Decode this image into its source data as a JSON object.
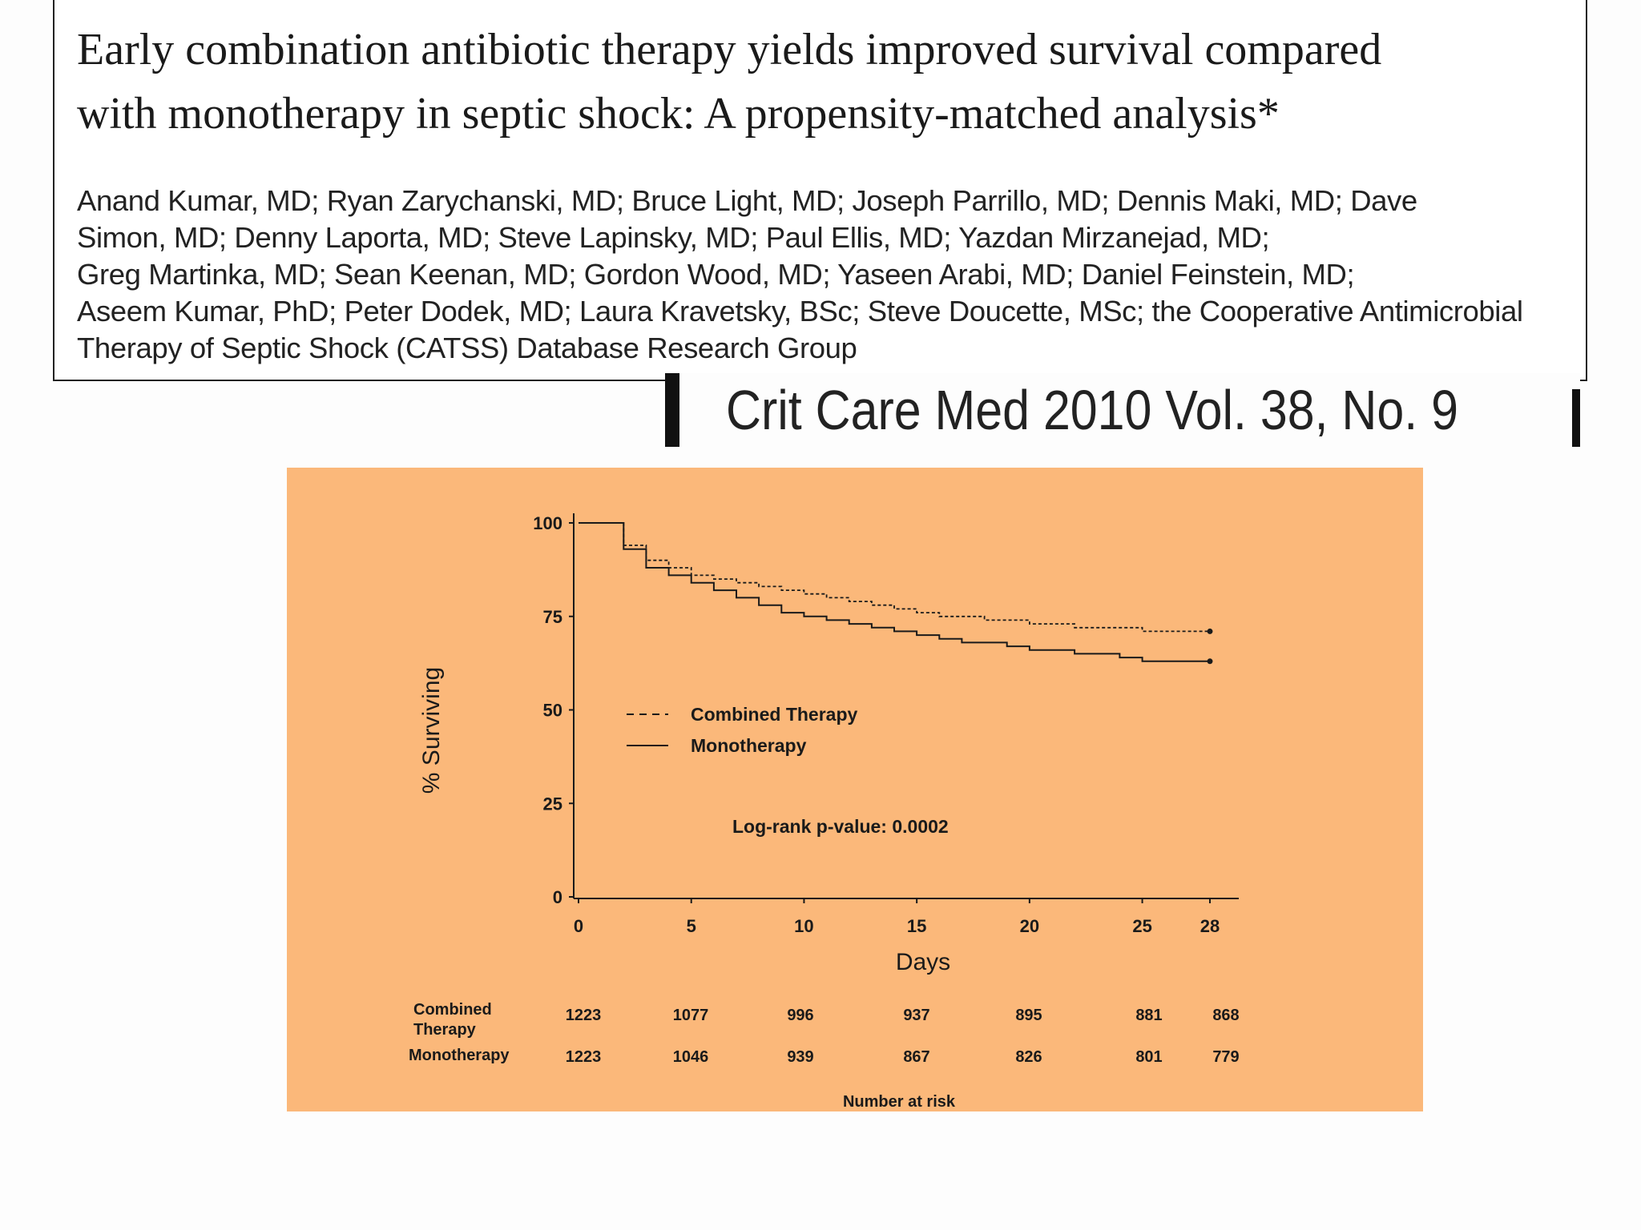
{
  "paper": {
    "title_line1": "Early combination antibiotic therapy yields improved survival compared",
    "title_line2": "with monotherapy in septic shock: A propensity-matched analysis*",
    "authors_lines": [
      "Anand Kumar, MD; Ryan Zarychanski, MD; Bruce Light, MD; Joseph Parrillo, MD; Dennis Maki, MD; Dave",
      "Simon, MD; Denny Laporta, MD; Steve Lapinsky, MD; Paul Ellis, MD; Yazdan Mirzanejad, MD;",
      "Greg Martinka, MD; Sean Keenan, MD; Gordon Wood, MD; Yaseen Arabi, MD; Daniel Feinstein, MD;",
      "Aseem Kumar, PhD; Peter Dodek, MD; Laura Kravetsky, BSc; Steve Doucette, MSc; the Cooperative Antimicrobial",
      "Therapy of Septic Shock (CATSS) Database Research Group"
    ],
    "citation": "Crit Care Med 2010 Vol. 38, No. 9"
  },
  "colors": {
    "panel_background": "#fbb87a",
    "ink": "#1a1a1a"
  },
  "chart_data": {
    "type": "line",
    "title": "",
    "xlabel": "Days",
    "ylabel": "% Surviving",
    "x_ticks": [
      0,
      5,
      10,
      15,
      20,
      25,
      28
    ],
    "y_ticks": [
      0,
      25,
      50,
      75,
      100
    ],
    "xlim": [
      0,
      28
    ],
    "ylim": [
      0,
      100
    ],
    "grid": false,
    "legend_position": "center-left",
    "series": [
      {
        "name": "Combined Therapy",
        "style": "dashed",
        "points": [
          [
            0,
            100
          ],
          [
            2,
            100
          ],
          [
            2,
            94
          ],
          [
            3,
            94
          ],
          [
            3,
            90
          ],
          [
            4,
            90
          ],
          [
            4,
            88
          ],
          [
            5,
            88
          ],
          [
            5,
            86
          ],
          [
            6,
            86
          ],
          [
            6,
            85
          ],
          [
            7,
            85
          ],
          [
            7,
            84
          ],
          [
            8,
            84
          ],
          [
            8,
            83
          ],
          [
            9,
            83
          ],
          [
            9,
            82
          ],
          [
            10,
            82
          ],
          [
            10,
            81
          ],
          [
            11,
            81
          ],
          [
            11,
            80
          ],
          [
            12,
            80
          ],
          [
            12,
            79
          ],
          [
            13,
            79
          ],
          [
            13,
            78
          ],
          [
            14,
            78
          ],
          [
            14,
            77
          ],
          [
            15,
            77
          ],
          [
            15,
            76
          ],
          [
            16,
            76
          ],
          [
            16,
            75
          ],
          [
            18,
            75
          ],
          [
            18,
            74
          ],
          [
            20,
            74
          ],
          [
            20,
            73
          ],
          [
            22,
            73
          ],
          [
            22,
            72
          ],
          [
            25,
            72
          ],
          [
            25,
            71
          ],
          [
            28,
            71
          ]
        ]
      },
      {
        "name": "Monotherapy",
        "style": "solid",
        "points": [
          [
            0,
            100
          ],
          [
            2,
            100
          ],
          [
            2,
            93
          ],
          [
            3,
            93
          ],
          [
            3,
            88
          ],
          [
            4,
            88
          ],
          [
            4,
            86
          ],
          [
            5,
            86
          ],
          [
            5,
            84
          ],
          [
            6,
            84
          ],
          [
            6,
            82
          ],
          [
            7,
            82
          ],
          [
            7,
            80
          ],
          [
            8,
            80
          ],
          [
            8,
            78
          ],
          [
            9,
            78
          ],
          [
            9,
            76
          ],
          [
            10,
            76
          ],
          [
            10,
            75
          ],
          [
            11,
            75
          ],
          [
            11,
            74
          ],
          [
            12,
            74
          ],
          [
            12,
            73
          ],
          [
            13,
            73
          ],
          [
            13,
            72
          ],
          [
            14,
            72
          ],
          [
            14,
            71
          ],
          [
            15,
            71
          ],
          [
            15,
            70
          ],
          [
            16,
            70
          ],
          [
            16,
            69
          ],
          [
            17,
            69
          ],
          [
            17,
            68
          ],
          [
            19,
            68
          ],
          [
            19,
            67
          ],
          [
            20,
            67
          ],
          [
            20,
            66
          ],
          [
            22,
            66
          ],
          [
            22,
            65
          ],
          [
            24,
            65
          ],
          [
            24,
            64
          ],
          [
            25,
            64
          ],
          [
            25,
            63
          ],
          [
            28,
            63
          ]
        ]
      }
    ],
    "annotation": "Log-rank p-value: 0.0002",
    "number_at_risk": {
      "label": "Number at risk",
      "days": [
        0,
        5,
        10,
        15,
        20,
        25,
        28
      ],
      "rows": [
        {
          "name_line1": "Combined",
          "name_line2": "Therapy",
          "values": [
            1223,
            1077,
            996,
            937,
            895,
            881,
            868
          ]
        },
        {
          "name_line1": "Monotherapy",
          "name_line2": "",
          "values": [
            1223,
            1046,
            939,
            867,
            826,
            801,
            779
          ]
        }
      ]
    }
  }
}
